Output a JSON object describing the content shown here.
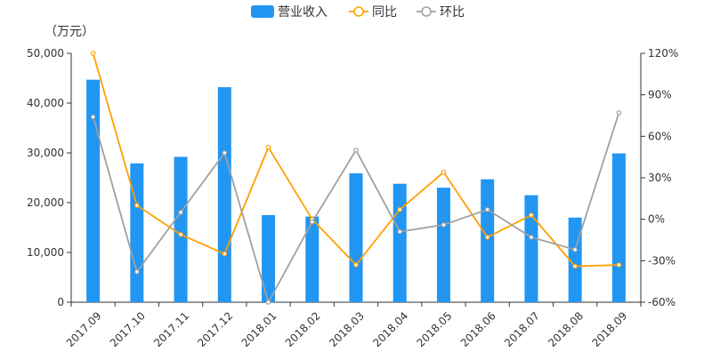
{
  "chart_data": {
    "type": "bar",
    "categories": [
      "2017.09",
      "2017.10",
      "2017.11",
      "2017.12",
      "2018.01",
      "2018.02",
      "2018.03",
      "2018.04",
      "2018.05",
      "2018.06",
      "2018.07",
      "2018.08",
      "2018.09"
    ],
    "series": [
      {
        "name": "营业收入",
        "type": "bar",
        "axis": "left",
        "color": "#2196F3",
        "values": [
          44700,
          27900,
          29200,
          43200,
          17500,
          17200,
          25900,
          23800,
          23000,
          24700,
          21500,
          17000,
          29900
        ]
      },
      {
        "name": "同比",
        "type": "line",
        "axis": "right",
        "color": "#FF9F00",
        "values": [
          120,
          10,
          -11,
          -25,
          52,
          0,
          -33,
          7,
          34,
          -13,
          3,
          -34,
          -33
        ]
      },
      {
        "name": "环比",
        "type": "line",
        "axis": "right",
        "color": "#A0A0A0",
        "values": [
          74,
          -38,
          5,
          48,
          -60,
          -2,
          50,
          -9,
          -4,
          7,
          -13,
          -22,
          77
        ]
      }
    ],
    "y_left": {
      "unit_label": "（万元）",
      "range": [
        0,
        50000
      ],
      "ticks": [
        "0",
        "10,000",
        "20,000",
        "30,000",
        "40,000",
        "50,000"
      ]
    },
    "y_right": {
      "range": [
        -60,
        120
      ],
      "ticks": [
        "-60%",
        "-30%",
        "0%",
        "30%",
        "60%",
        "90%",
        "120%"
      ]
    },
    "legend": {
      "position": "top-center"
    },
    "grid": false
  }
}
